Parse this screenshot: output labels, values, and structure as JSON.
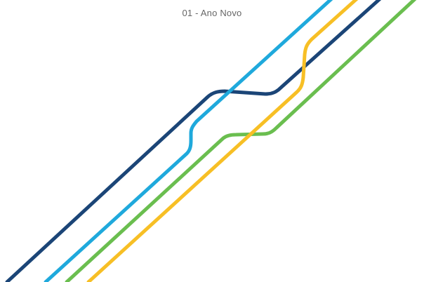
{
  "title": "01 - Ano Novo",
  "lines": [
    {
      "name": "dark-blue-line",
      "color": "#1b4577"
    },
    {
      "name": "light-blue-line",
      "color": "#1fa9dc"
    },
    {
      "name": "green-line",
      "color": "#6abe4f"
    },
    {
      "name": "yellow-line",
      "color": "#f7bf25"
    }
  ]
}
